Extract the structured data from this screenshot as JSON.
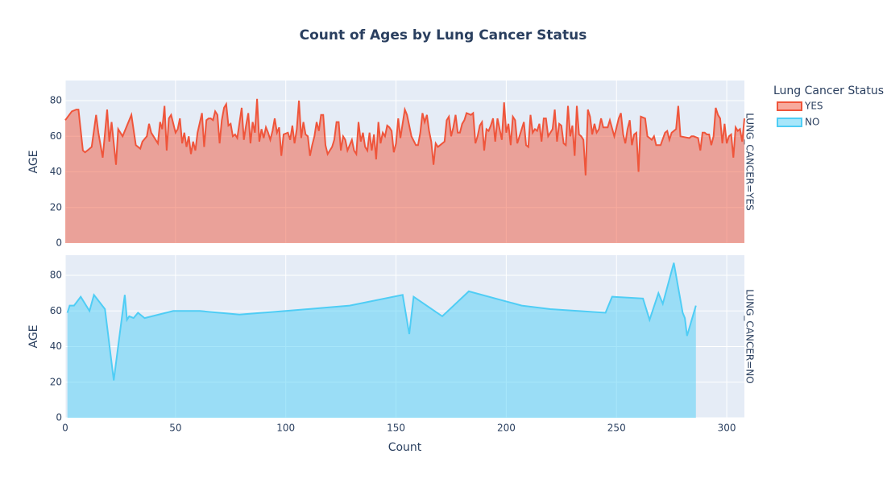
{
  "chart_data": [
    {
      "type": "area",
      "title": "Count of Ages by Lung Cancer Status",
      "legend_title": "Lung Cancer Status",
      "facet_label": "LUNG_CANCER=YES",
      "ylabel": "AGE",
      "xlim": [
        0,
        308
      ],
      "ylim": [
        0,
        91.3
      ],
      "yticks": [
        0,
        20,
        40,
        60,
        80
      ],
      "grid": true,
      "series": [
        {
          "name": "YES",
          "color": "#ef553b",
          "x": [
            0,
            3,
            5,
            6,
            8,
            9,
            10,
            12,
            14,
            15,
            16,
            17,
            19,
            20,
            21,
            23,
            24,
            25,
            26,
            30,
            32,
            34,
            35,
            37,
            38,
            39,
            40,
            41,
            42,
            43,
            44,
            45,
            46,
            47,
            48,
            50,
            51,
            52,
            53,
            54,
            55,
            56,
            57,
            58,
            59,
            60,
            62,
            63,
            64,
            65,
            66,
            67,
            68,
            69,
            70,
            71,
            72,
            73,
            74,
            75,
            76,
            77,
            78,
            80,
            81,
            82,
            83,
            84,
            85,
            86,
            87,
            88,
            89,
            90,
            91,
            92,
            93,
            94,
            95,
            96,
            97,
            98,
            99,
            101,
            102,
            103,
            104,
            105,
            106,
            107,
            108,
            109,
            110,
            111,
            112,
            113,
            114,
            115,
            116,
            117,
            118,
            119,
            120,
            121,
            122,
            123,
            124,
            125,
            126,
            127,
            128,
            130,
            131,
            132,
            133,
            134,
            135,
            136,
            137,
            138,
            139,
            140,
            141,
            142,
            143,
            144,
            145,
            146,
            147,
            148,
            149,
            150,
            151,
            152,
            154,
            155,
            157,
            159,
            160,
            161,
            162,
            163,
            164,
            165,
            166,
            167,
            168,
            169,
            170,
            172,
            173,
            174,
            175,
            176,
            177,
            178,
            179,
            180,
            181,
            182,
            184,
            185,
            186,
            187,
            188,
            189,
            190,
            191,
            192,
            193,
            194,
            195,
            196,
            197,
            198,
            199,
            200,
            201,
            202,
            203,
            204,
            205,
            206,
            208,
            209,
            210,
            211,
            212,
            213,
            214,
            215,
            216,
            217,
            218,
            219,
            221,
            222,
            223,
            224,
            225,
            226,
            227,
            228,
            229,
            230,
            231,
            232,
            233,
            234,
            235,
            236,
            237,
            238,
            239,
            240,
            241,
            242,
            243,
            244,
            246,
            247,
            249,
            250,
            251,
            252,
            253,
            254,
            255,
            256,
            257,
            258,
            259,
            260,
            261,
            263,
            264,
            266,
            267,
            268,
            270,
            272,
            273,
            274,
            275,
            277,
            278,
            279,
            283,
            284,
            285,
            287,
            288,
            289,
            290,
            291,
            292,
            293,
            294,
            295,
            296,
            297,
            298,
            299,
            300,
            301,
            302,
            303,
            304,
            305,
            306,
            307,
            308
          ],
          "values": [
            69,
            74,
            75,
            75,
            52,
            51,
            52,
            54,
            72,
            62,
            55,
            48,
            75,
            57,
            68,
            44,
            64,
            62,
            60,
            72,
            55,
            53,
            57,
            60,
            67,
            62,
            60,
            58,
            56,
            68,
            64,
            77,
            52,
            70,
            72,
            62,
            64,
            70,
            56,
            62,
            54,
            60,
            50,
            57,
            52,
            62,
            73,
            54,
            69,
            70,
            70,
            69,
            74,
            72,
            56,
            69,
            76,
            78,
            66,
            67,
            60,
            61,
            59,
            76,
            58,
            66,
            73,
            56,
            68,
            62,
            81,
            57,
            64,
            59,
            65,
            62,
            58,
            63,
            70,
            62,
            65,
            49,
            61,
            62,
            58,
            66,
            56,
            64,
            80,
            59,
            68,
            61,
            60,
            49,
            55,
            60,
            68,
            63,
            72,
            72,
            55,
            50,
            52,
            54,
            58,
            68,
            68,
            52,
            60,
            58,
            52,
            58,
            52,
            50,
            68,
            57,
            62,
            54,
            52,
            62,
            52,
            61,
            47,
            68,
            56,
            62,
            60,
            66,
            65,
            63,
            51,
            56,
            70,
            59,
            75,
            72,
            60,
            55,
            55,
            62,
            73,
            68,
            72,
            63,
            57,
            44,
            56,
            54,
            55,
            57,
            69,
            71,
            60,
            65,
            72,
            62,
            62,
            67,
            69,
            73,
            72,
            73,
            56,
            60,
            66,
            68,
            52,
            64,
            63,
            66,
            70,
            57,
            70,
            64,
            58,
            79,
            62,
            67,
            55,
            71,
            69,
            56,
            60,
            68,
            55,
            54,
            72,
            62,
            64,
            63,
            67,
            57,
            70,
            70,
            60,
            64,
            75,
            57,
            67,
            66,
            56,
            55,
            77,
            60,
            66,
            49,
            77,
            61,
            60,
            58,
            38,
            75,
            71,
            61,
            67,
            62,
            64,
            70,
            65,
            65,
            69,
            60,
            65,
            70,
            73,
            61,
            56,
            64,
            69,
            55,
            61,
            62,
            40,
            71,
            70,
            60,
            58,
            60,
            55,
            55,
            62,
            63,
            58,
            62,
            64,
            77,
            60,
            59,
            60,
            60,
            59,
            52,
            62,
            62,
            61,
            61,
            55,
            60,
            76,
            72,
            70,
            56,
            67,
            56,
            60,
            61,
            48,
            65,
            63,
            64,
            57,
            70
          ]
        }
      ]
    },
    {
      "type": "area",
      "facet_label": "LUNG_CANCER=NO",
      "ylabel": "AGE",
      "xlabel": "Count",
      "xlim": [
        0,
        308
      ],
      "xticks": [
        0,
        50,
        100,
        150,
        200,
        250,
        300
      ],
      "ylim": [
        0,
        91.3
      ],
      "yticks": [
        0,
        20,
        40,
        60,
        80
      ],
      "grid": true,
      "series": [
        {
          "name": "NO",
          "color": "#4fcdf5",
          "x": [
            1,
            2,
            4,
            7,
            11,
            13,
            18,
            22,
            27,
            28,
            29,
            31,
            33,
            36,
            49,
            61,
            79,
            100,
            129,
            153,
            156,
            158,
            171,
            183,
            207,
            220,
            245,
            248,
            262,
            265,
            269,
            271,
            276,
            280,
            281,
            282,
            286
          ],
          "values": [
            59,
            63,
            63,
            68,
            60,
            69,
            61,
            21,
            69,
            55,
            57,
            56,
            59,
            56,
            60,
            60,
            58,
            60,
            63,
            69,
            47,
            68,
            57,
            71,
            63,
            61,
            59,
            68,
            67,
            55,
            70,
            64,
            87,
            59,
            56,
            46,
            63
          ]
        }
      ]
    }
  ]
}
